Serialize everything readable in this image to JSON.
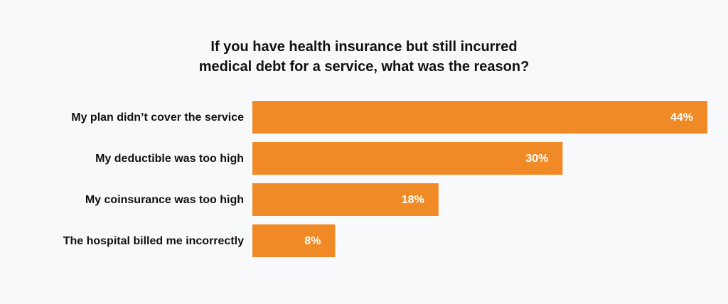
{
  "chart_data": {
    "type": "bar",
    "orientation": "horizontal",
    "title": "If you have health insurance but still incurred medical debt for a service, what was the reason?",
    "categories": [
      "My plan didn’t cover the service",
      "My deductible was too high",
      "My coinsurance was too high",
      "The hospital billed me incorrectly"
    ],
    "values": [
      44,
      30,
      18,
      8
    ],
    "value_labels": [
      "44%",
      "30%",
      "18%",
      "8%"
    ],
    "color": "#ef8a26"
  }
}
